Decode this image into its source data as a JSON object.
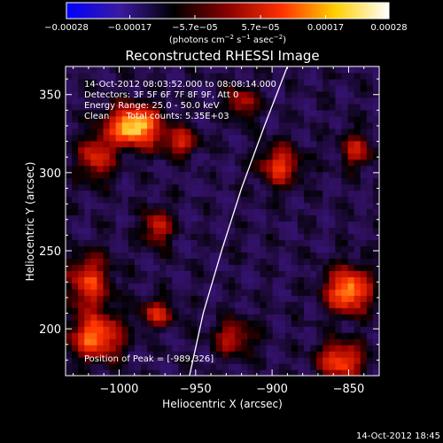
{
  "chart_data": {
    "type": "heatmap",
    "title": "Reconstructed RHESSI Image",
    "xlabel": "Heliocentric X (arcsec)",
    "ylabel": "Heliocentric Y (arcsec)",
    "xlim": [
      -1035,
      -830
    ],
    "ylim": [
      170,
      368
    ],
    "xticks": [
      -1000,
      -950,
      -900,
      -850
    ],
    "xtick_labels": [
      "−1000",
      "−950",
      "−900",
      "−850"
    ],
    "yticks": [
      200,
      250,
      300,
      350
    ],
    "ytick_labels": [
      "200",
      "250",
      "300",
      "350"
    ],
    "colorbar": {
      "min": -0.00028,
      "max": 0.00028,
      "ticks": [
        -0.00028,
        -0.00017,
        -5.7e-05,
        5.7e-05,
        0.00017,
        0.00028
      ],
      "tick_labels": [
        "−0.00028",
        "−0.00017",
        "−5.7e−05",
        "5.7e−05",
        "0.00017",
        "0.00028"
      ],
      "units_text": "(photons cm",
      "units_sup1": "−2",
      "units_mid": " s",
      "units_sup2": "−1",
      "units_end": " asec",
      "units_sup3": "−2",
      "units_close": ")",
      "colors": [
        "#0000ff",
        "#3a1aa0",
        "#000000",
        "#8a0000",
        "#ff3000",
        "#ffd000",
        "#ffffff"
      ]
    },
    "annotations": [
      "14-Oct-2012 08:03:52.000 to 08:08:14.000",
      "Detectors: 3F 5F 6F 7F 8F 9F, Att 0",
      "Energy Range: 25.0 - 50.0 keV",
      "Clean      Total counts: 5.35E+03"
    ],
    "peak_label": "Position of Peak = [-989,326]",
    "peak": [
      -989,
      326
    ],
    "limb_curve": [
      [
        -954,
        170
      ],
      [
        -945,
        210
      ],
      [
        -933,
        250
      ],
      [
        -920,
        290
      ],
      [
        -905,
        330
      ],
      [
        -890,
        368
      ]
    ],
    "hotspots": [
      {
        "x": -990,
        "y": 330,
        "amp": 1.0,
        "sx": 12,
        "sy": 9
      },
      {
        "x": -1015,
        "y": 310,
        "amp": 0.55,
        "sx": 8,
        "sy": 10
      },
      {
        "x": -960,
        "y": 320,
        "amp": 0.5,
        "sx": 8,
        "sy": 6
      },
      {
        "x": -895,
        "y": 305,
        "amp": 0.6,
        "sx": 9,
        "sy": 9
      },
      {
        "x": -845,
        "y": 315,
        "amp": 0.45,
        "sx": 7,
        "sy": 8
      },
      {
        "x": -975,
        "y": 265,
        "amp": 0.55,
        "sx": 6,
        "sy": 8
      },
      {
        "x": -1020,
        "y": 230,
        "amp": 0.6,
        "sx": 10,
        "sy": 12
      },
      {
        "x": -1015,
        "y": 195,
        "amp": 0.75,
        "sx": 12,
        "sy": 10
      },
      {
        "x": -975,
        "y": 210,
        "amp": 0.5,
        "sx": 8,
        "sy": 6
      },
      {
        "x": -925,
        "y": 195,
        "amp": 0.45,
        "sx": 9,
        "sy": 8
      },
      {
        "x": -850,
        "y": 225,
        "amp": 0.85,
        "sx": 10,
        "sy": 10
      },
      {
        "x": -855,
        "y": 180,
        "amp": 0.7,
        "sx": 10,
        "sy": 8
      },
      {
        "x": -920,
        "y": 345,
        "amp": 0.45,
        "sx": 7,
        "sy": 7
      }
    ]
  },
  "timestamp": "14-Oct-2012 18:45"
}
